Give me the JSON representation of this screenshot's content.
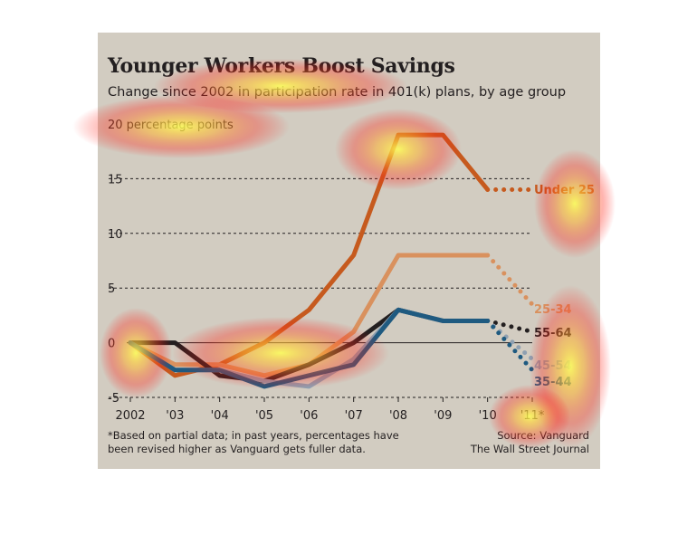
{
  "chart": {
    "title": "Younger Workers Boost Savings",
    "subtitle": "Change since 2002 in participation rate in 401(k) plans, by age group",
    "footnote": "*Based on partial data; in past years, percentages have been revised higher as Vanguard gets fuller data.",
    "source_line1": "Source: Vanguard",
    "source_line2": "The Wall Street Journal"
  },
  "chart_data": {
    "type": "line",
    "title": "Younger Workers Boost Savings",
    "subtitle": "Change since 2002 in participation rate in 401(k) plans, by age group",
    "ylabel": "percentage points",
    "y_unit_label": "20 percentage points",
    "categories": [
      "2002",
      "'03",
      "'04",
      "'05",
      "'06",
      "'07",
      "'08",
      "'09",
      "'10",
      "'11*"
    ],
    "ylim": [
      -5,
      20
    ],
    "yticks": [
      -5,
      0,
      5,
      10,
      15,
      20
    ],
    "grid": true,
    "partial_data_from": "'10",
    "series": [
      {
        "name": "Under 25",
        "color": "#c65a1e",
        "values": [
          0,
          -3,
          -2,
          0,
          3,
          8,
          19,
          19,
          14,
          14
        ]
      },
      {
        "name": "25-34",
        "color": "#d9915e",
        "values": [
          0,
          -2,
          -2,
          -3,
          -2,
          1,
          8,
          8,
          8,
          3.5
        ]
      },
      {
        "name": "55-64",
        "color": "#231f20",
        "values": [
          0,
          0,
          -3,
          -3.5,
          -2,
          0,
          3,
          2,
          2,
          1
        ]
      },
      {
        "name": "45-54",
        "color": "#8fa0b1",
        "values": [
          0,
          -2.5,
          -2.5,
          -3.5,
          -4,
          -1.5,
          3,
          2,
          2,
          -1.5
        ]
      },
      {
        "name": "35-44",
        "color": "#1f5a80",
        "values": [
          0,
          -2.5,
          -2.5,
          -4,
          -3,
          -2,
          3,
          2,
          2,
          -2.5
        ]
      }
    ]
  }
}
